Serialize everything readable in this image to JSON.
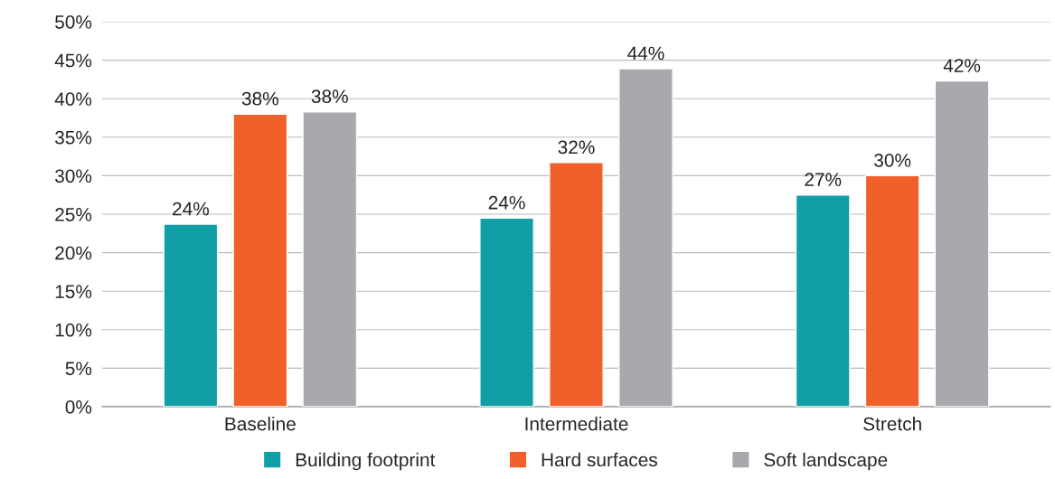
{
  "chart_data": {
    "type": "bar",
    "categories": [
      "Baseline",
      "Intermediate",
      "Stretch"
    ],
    "series": [
      {
        "name": "Building footprint",
        "color": "#129ea6",
        "values": [
          23.7,
          24.5,
          27.5
        ],
        "value_labels": [
          "24%",
          "24%",
          "27%"
        ]
      },
      {
        "name": "Hard surfaces",
        "color": "#f0602b",
        "values": [
          38.0,
          31.7,
          30.0
        ],
        "value_labels": [
          "38%",
          "32%",
          "30%"
        ]
      },
      {
        "name": "Soft landscape",
        "color": "#a7a9ac",
        "values": [
          38.3,
          43.9,
          42.3
        ],
        "value_labels": [
          "38%",
          "44%",
          "42%"
        ]
      }
    ],
    "ylim": [
      0,
      50
    ],
    "yticks": [
      {
        "value": 0,
        "label": "0%"
      },
      {
        "value": 5,
        "label": "5%"
      },
      {
        "value": 10,
        "label": "10%"
      },
      {
        "value": 15,
        "label": "15%"
      },
      {
        "value": 20,
        "label": "20%"
      },
      {
        "value": 25,
        "label": "25%"
      },
      {
        "value": 30,
        "label": "30%"
      },
      {
        "value": 35,
        "label": "35%"
      },
      {
        "value": 40,
        "label": "40%"
      },
      {
        "value": 45,
        "label": "45%"
      },
      {
        "value": 50,
        "label": "50%"
      }
    ],
    "grid": "y",
    "legend": "bottom"
  }
}
